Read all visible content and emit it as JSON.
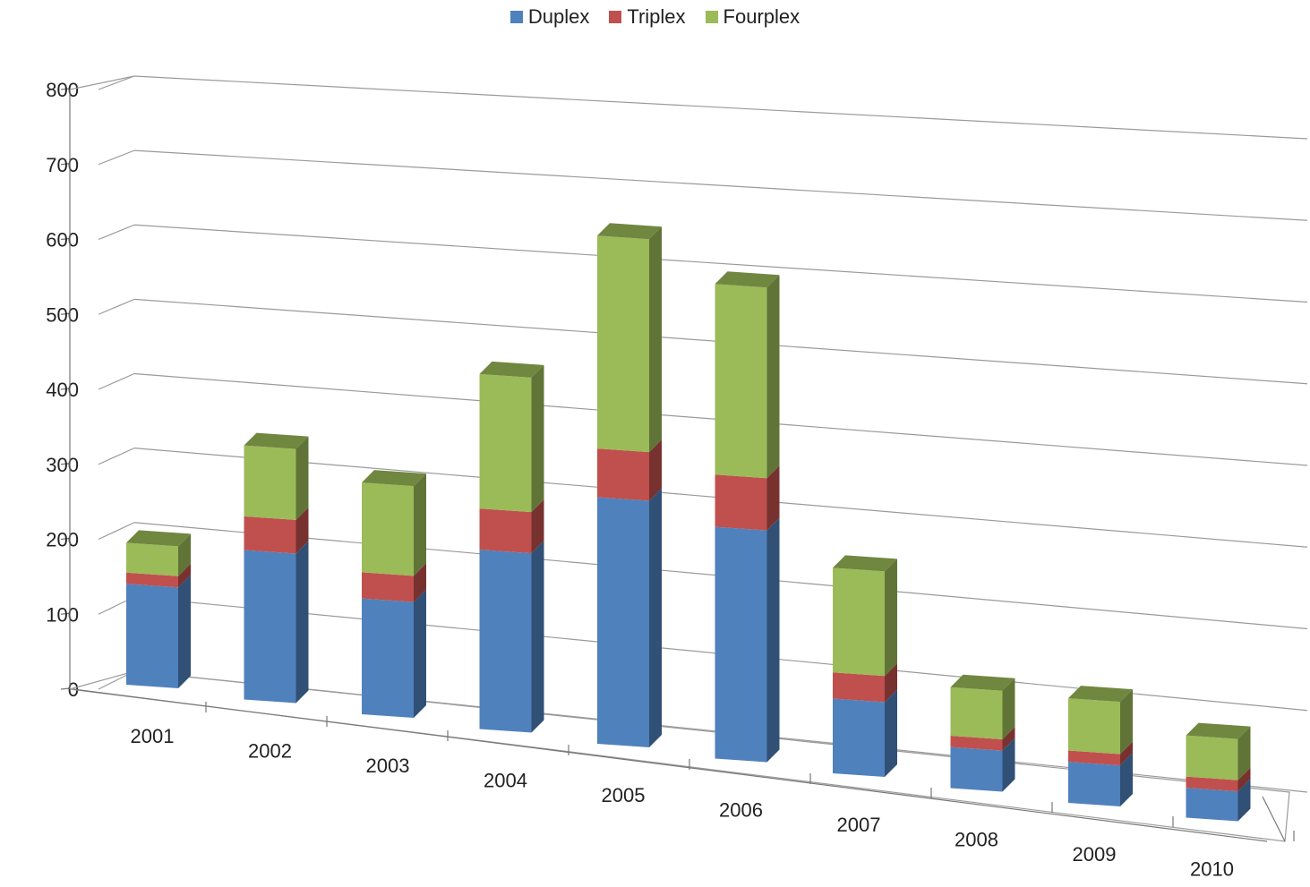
{
  "chart_data": {
    "type": "bar",
    "stacked": true,
    "three_d": true,
    "categories": [
      "2001",
      "2002",
      "2003",
      "2004",
      "2005",
      "2006",
      "2007",
      "2008",
      "2009",
      "2010"
    ],
    "series": [
      {
        "name": "Duplex",
        "color": "#4F81BD",
        "values": [
          135,
          200,
          155,
          240,
          330,
          310,
          100,
          55,
          55,
          40
        ]
      },
      {
        "name": "Triplex",
        "color": "#C0504D",
        "values": [
          15,
          45,
          35,
          55,
          65,
          70,
          35,
          15,
          15,
          15
        ]
      },
      {
        "name": "Fourplex",
        "color": "#9BBB59",
        "values": [
          40,
          95,
          120,
          180,
          285,
          255,
          140,
          65,
          70,
          55
        ]
      }
    ],
    "ylim": [
      0,
      800
    ],
    "yticks": [
      0,
      100,
      200,
      300,
      400,
      500,
      600,
      700,
      800
    ],
    "grid": true,
    "legend": "top-center",
    "title": "",
    "xlabel": "",
    "ylabel": ""
  }
}
